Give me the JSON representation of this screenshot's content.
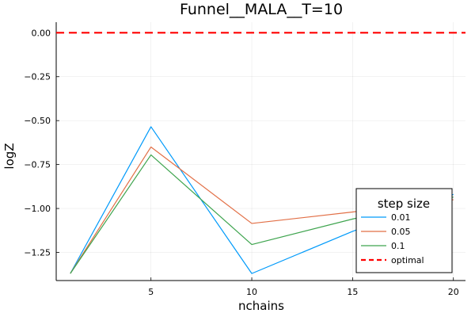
{
  "chart_data": {
    "type": "line",
    "title": "Funnel__MALA__T=10",
    "xlabel": "nchains",
    "ylabel": "logZ",
    "x": [
      1,
      5,
      10,
      15,
      20
    ],
    "xticks": [
      5,
      10,
      15,
      20
    ],
    "xtick_labels": [
      "5",
      "10",
      "15",
      "20"
    ],
    "yticks": [
      0.0,
      -0.25,
      -0.5,
      -0.75,
      -1.0,
      -1.25
    ],
    "ytick_labels": [
      "0.00",
      "−0.25",
      "−0.50",
      "−0.75",
      "−1.00",
      "−1.25"
    ],
    "xlim": [
      0.3,
      20.6
    ],
    "ylim": [
      -1.41,
      0.06
    ],
    "grid": true,
    "legend_title": "step size",
    "legend_position": "bottom-right",
    "series": [
      {
        "name": "0.01",
        "color": "#009AFA",
        "values": [
          -1.37,
          -0.535,
          -1.37,
          -1.13,
          -0.92
        ]
      },
      {
        "name": "0.05",
        "color": "#E26F46",
        "values": [
          -1.37,
          -0.65,
          -1.085,
          -1.02,
          -0.95
        ]
      },
      {
        "name": "0.1",
        "color": "#3EA44E",
        "values": [
          -1.37,
          -0.695,
          -1.205,
          -1.06,
          -0.935
        ]
      }
    ],
    "reference": {
      "name": "optimal",
      "value": 0.0,
      "color": "#FF0000",
      "style": "dashed"
    }
  }
}
